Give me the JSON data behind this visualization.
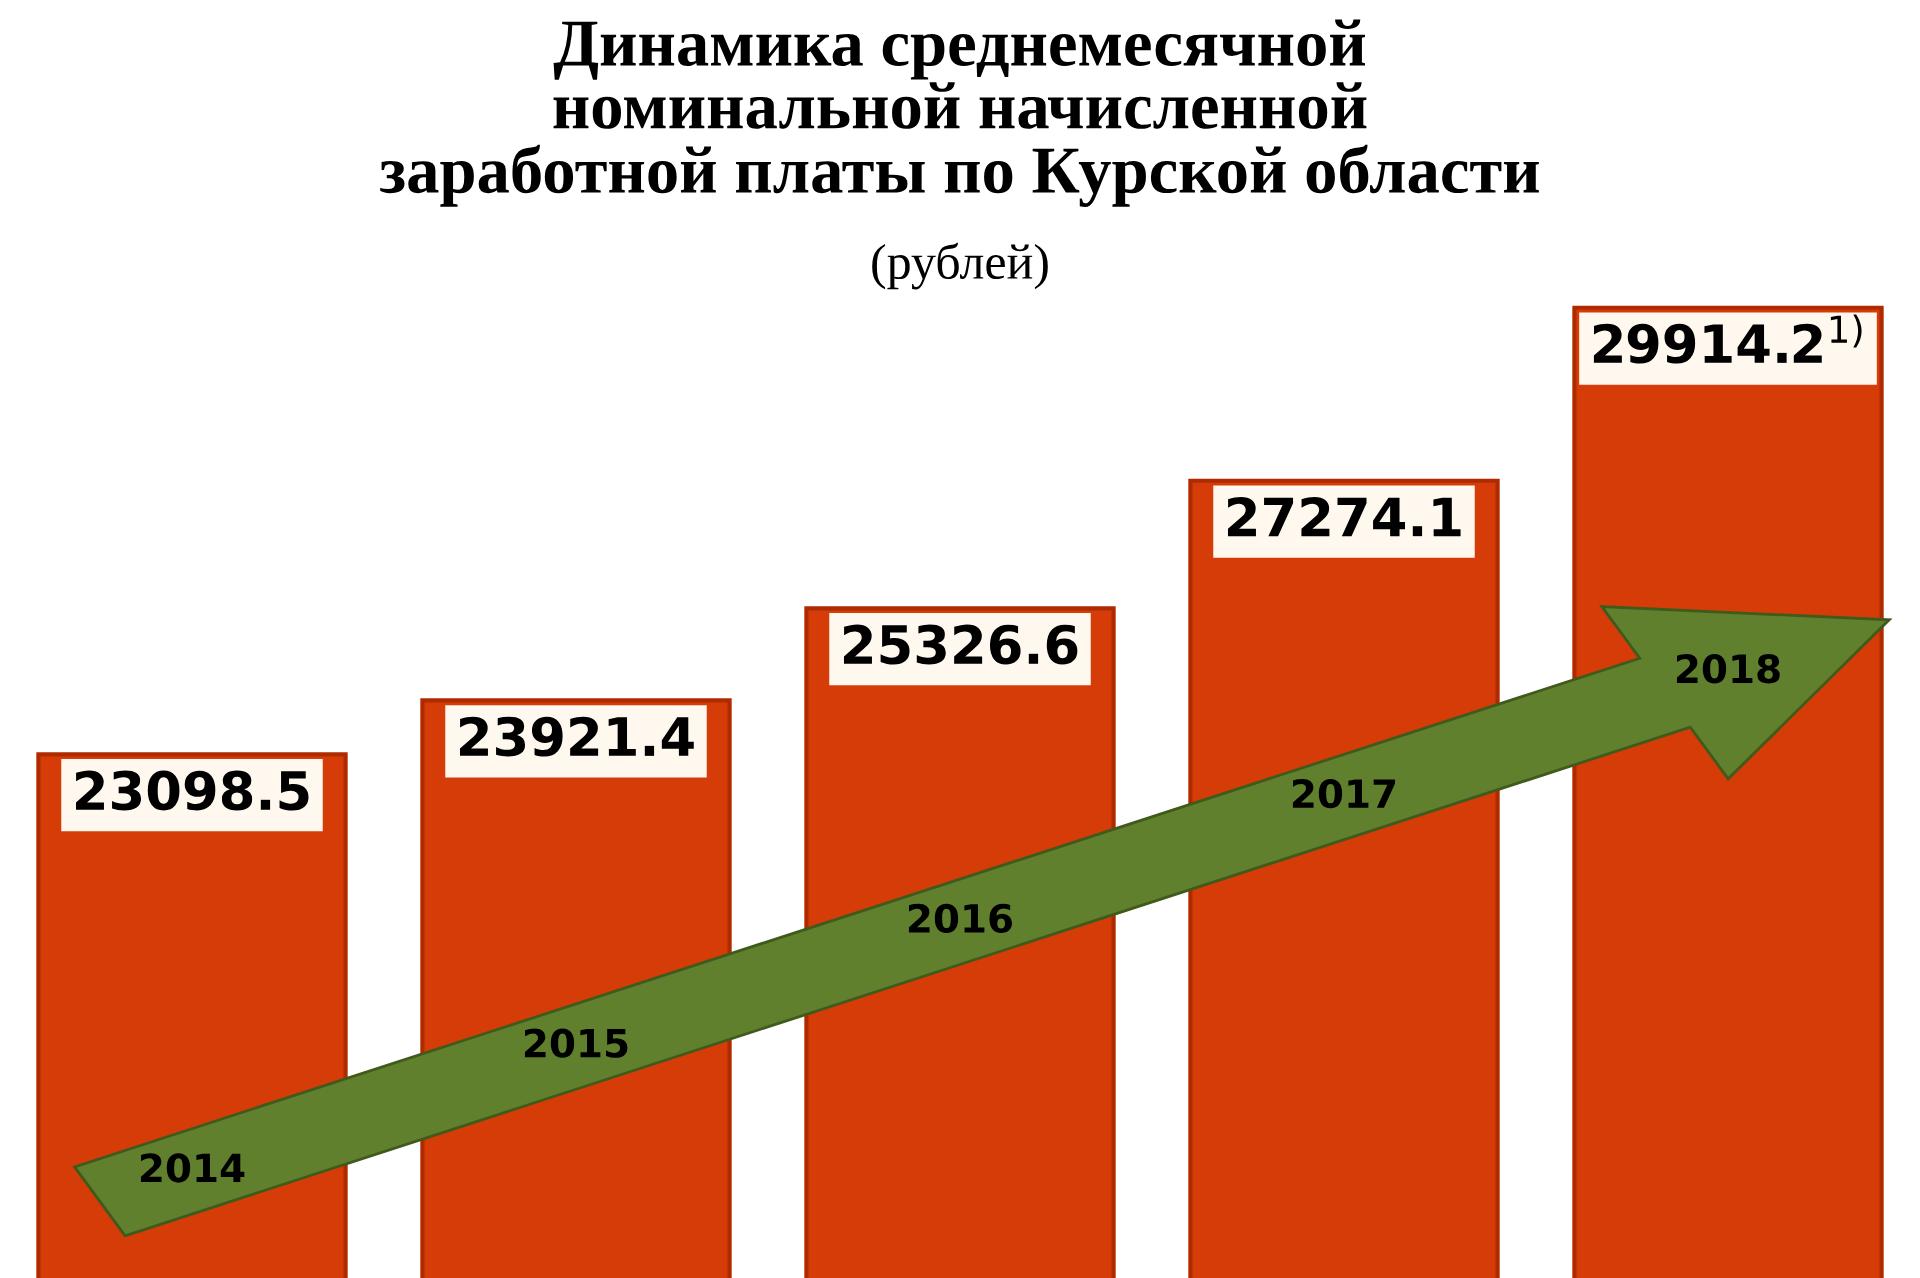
{
  "chart_data": {
    "type": "bar",
    "title": "Динамика среднемесячной\nноминальной начисленной\nзаработной платы по Курской области",
    "subtitle": "(рублей)",
    "categories": [
      "2014",
      "2015",
      "2016",
      "2017",
      "2018"
    ],
    "values": [
      23098.5,
      23921.4,
      25326.6,
      27274.1,
      29914.2
    ],
    "value_labels": [
      "23098.5",
      "23921.4",
      "25326.6",
      "27274.1",
      "29914.2$^{1)}$"
    ],
    "color": "#d63c08"
  }
}
